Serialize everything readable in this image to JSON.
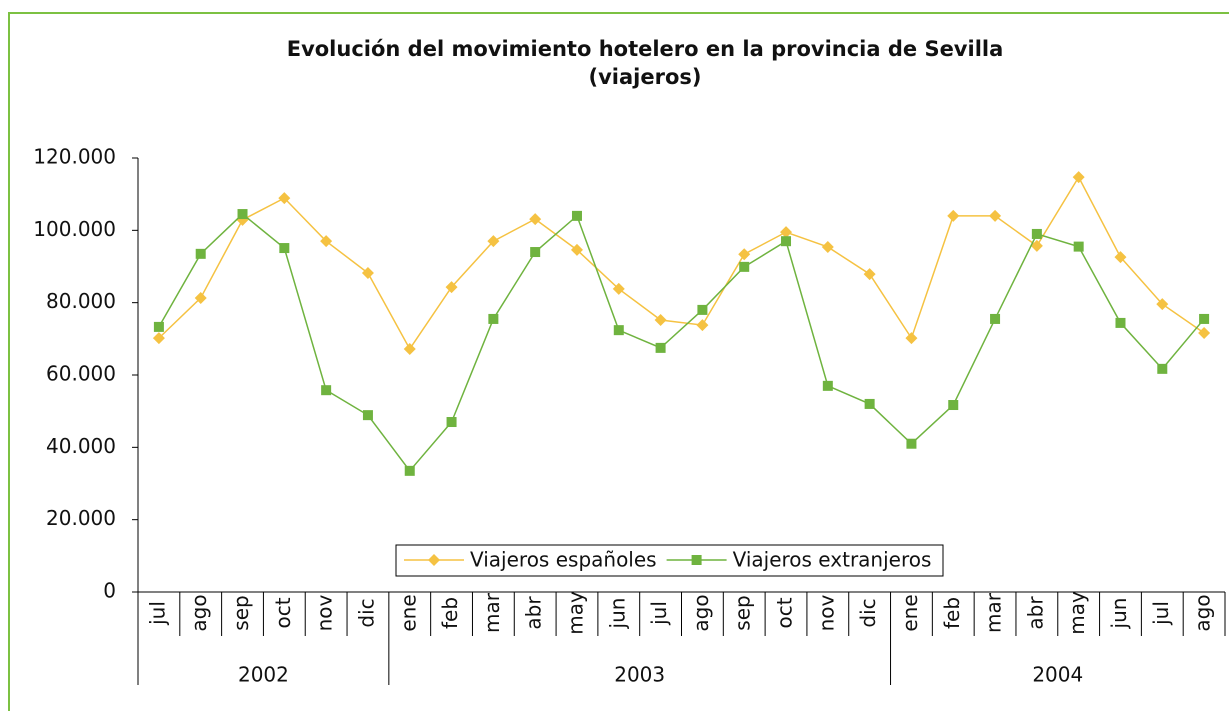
{
  "chart_data": {
    "type": "line",
    "title": "Evolución del movimiento hotelero en la provincia de Sevilla",
    "subtitle": "(viajeros)",
    "categories": [
      "jul",
      "ago",
      "sep",
      "oct",
      "nov",
      "dic",
      "ene",
      "feb",
      "mar",
      "abr",
      "may",
      "jun",
      "jul",
      "ago",
      "sep",
      "oct",
      "nov",
      "dic",
      "ene",
      "feb",
      "mar",
      "abr",
      "may",
      "jun",
      "jul",
      "ago"
    ],
    "x_groups": [
      "2002",
      "2003",
      "2004"
    ],
    "series": [
      {
        "name": "Viajeros españoles",
        "color": "#f5c242",
        "marker": "diamond",
        "values": [
          70200,
          81300,
          102900,
          108900,
          97000,
          88200,
          67200,
          84300,
          97000,
          103100,
          94600,
          83800,
          75200,
          73800,
          93400,
          99500,
          95400,
          87900,
          70200,
          104000,
          104000,
          95700,
          114700,
          92600,
          79600,
          71600
        ]
      },
      {
        "name": "Viajeros extranjeros",
        "color": "#6fb33f",
        "marker": "square",
        "values": [
          73300,
          93500,
          104500,
          95100,
          55800,
          48900,
          33500,
          47000,
          75500,
          94000,
          104000,
          72400,
          67500,
          78000,
          89900,
          97000,
          57000,
          52000,
          41000,
          51700,
          75500,
          99000,
          95500,
          74400,
          61700,
          75500
        ]
      }
    ],
    "ylim": [
      0,
      120000
    ],
    "yticks": [
      {
        "value": 0,
        "label": "0"
      },
      {
        "value": 20000,
        "label": "20.000"
      },
      {
        "value": 40000,
        "label": "40.000"
      },
      {
        "value": 60000,
        "label": "60.000"
      },
      {
        "value": 80000,
        "label": "80.000"
      },
      {
        "value": 100000,
        "label": "100.000"
      },
      {
        "value": 120000,
        "label": "120.000"
      }
    ],
    "grid": false,
    "legend": "bottom"
  }
}
